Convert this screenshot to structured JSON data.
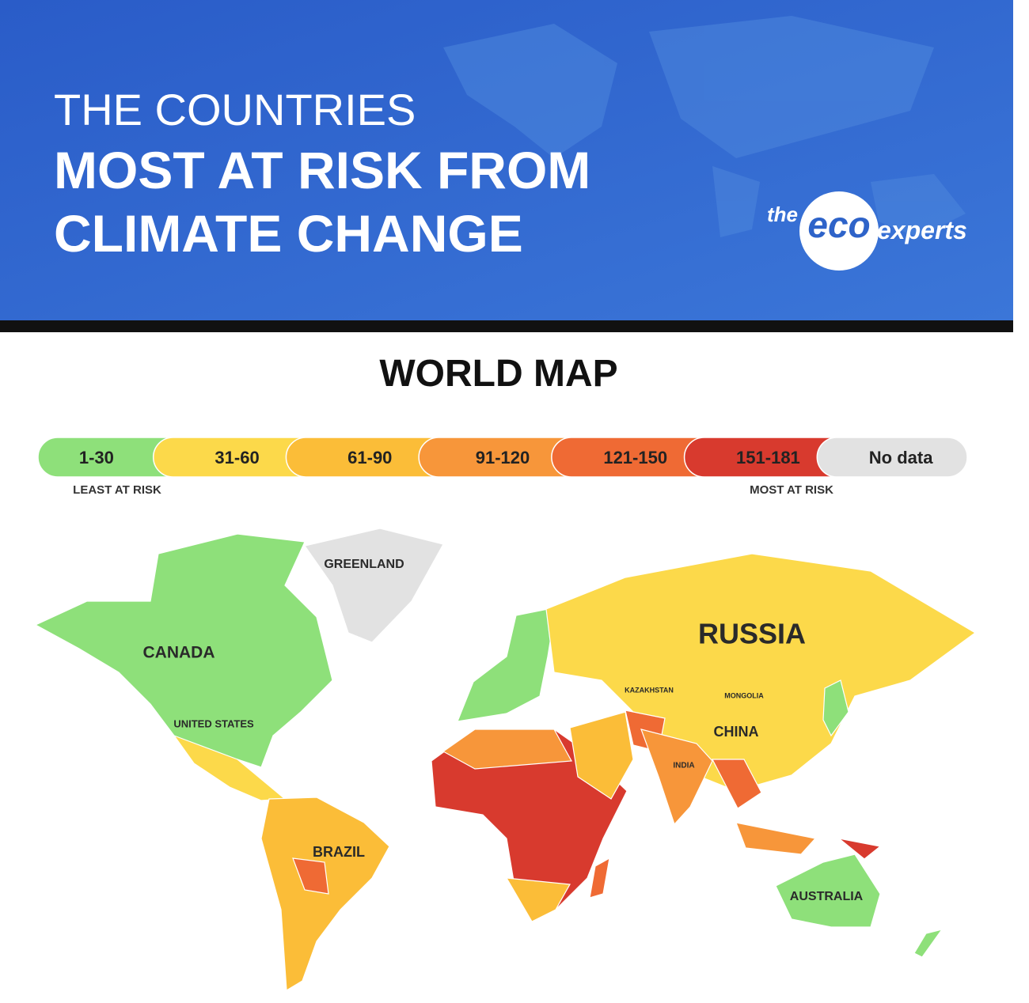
{
  "header": {
    "title_lines": [
      "THE COUNTRIES",
      "MOST AT RISK FROM",
      "CLIMATE CHANGE"
    ],
    "logo": {
      "prefix": "the",
      "brand": "eco",
      "suffix": "experts"
    }
  },
  "map": {
    "title": "WORLD MAP",
    "legend": [
      {
        "label": "1-30",
        "color": "#8ee07a"
      },
      {
        "label": "31-60",
        "color": "#fcd94a"
      },
      {
        "label": "61-90",
        "color": "#fbbd38"
      },
      {
        "label": "91-120",
        "color": "#f7963a"
      },
      {
        "label": "121-150",
        "color": "#ef6a34"
      },
      {
        "label": "151-181",
        "color": "#d83a2e"
      },
      {
        "label": "No data",
        "color": "#e2e2e2"
      }
    ],
    "legend_notes": {
      "least": "LEAST AT RISK",
      "most": "MOST AT RISK"
    },
    "country_labels": [
      "GREENLAND",
      "CANADA",
      "UNITED STATES",
      "RUSSIA",
      "KAZAKHSTAN",
      "MONGOLIA",
      "CHINA",
      "INDIA",
      "BRAZIL",
      "AUSTRALIA"
    ]
  }
}
